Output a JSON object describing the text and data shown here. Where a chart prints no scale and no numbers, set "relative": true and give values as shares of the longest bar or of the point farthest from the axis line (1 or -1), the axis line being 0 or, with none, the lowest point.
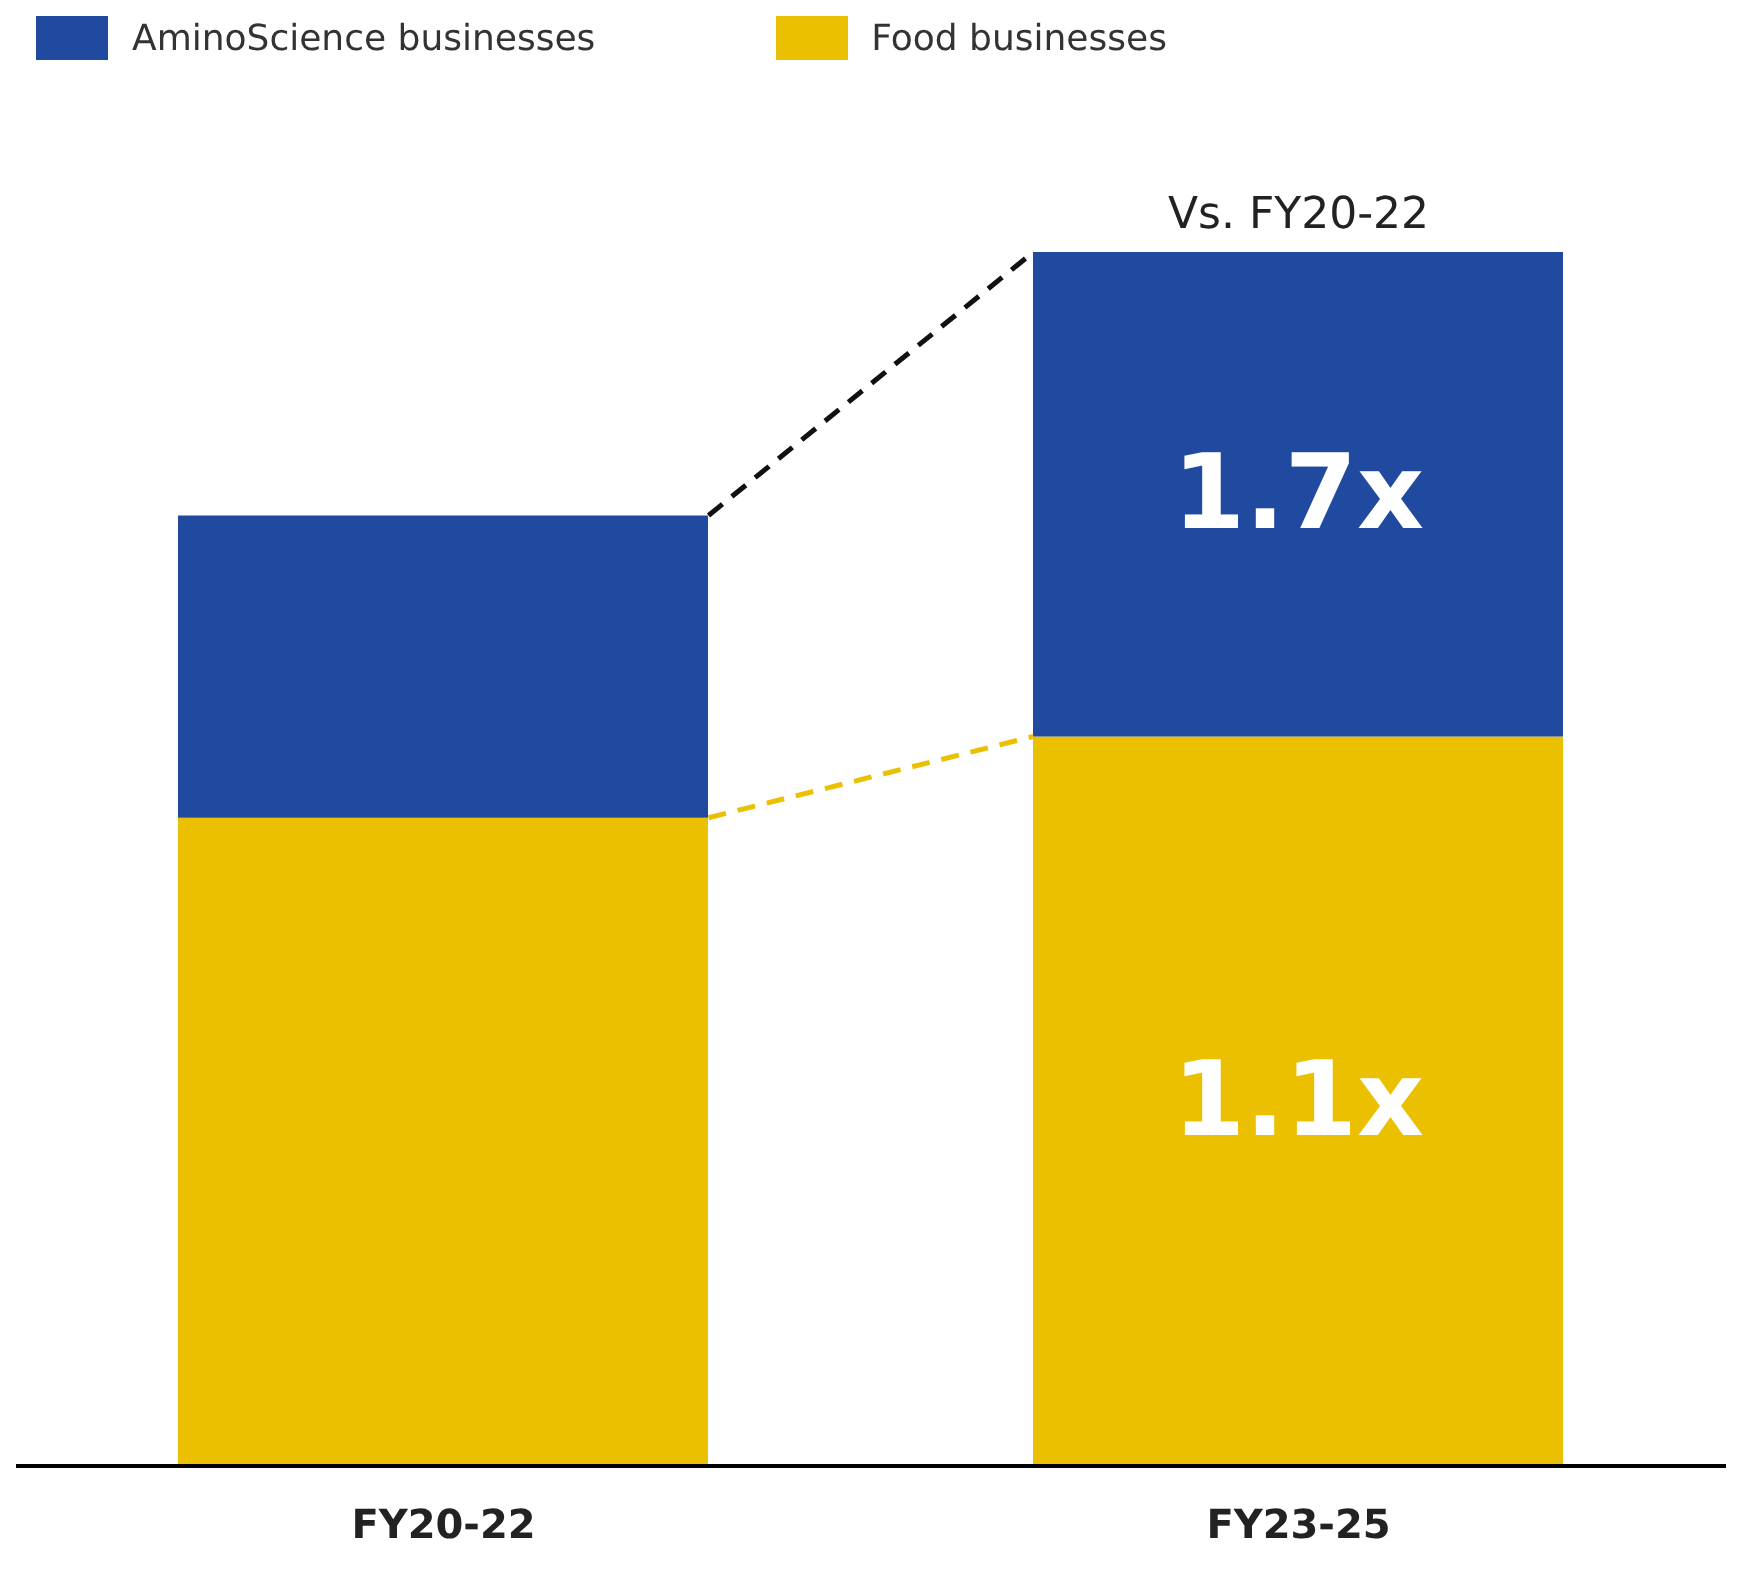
{
  "chart_data": {
    "type": "bar",
    "stacked": true,
    "relative": true,
    "categories": [
      "FY20-22",
      "FY23-25"
    ],
    "series": [
      {
        "name": "Food businesses",
        "color": "#ebc000",
        "values": [
          0.534,
          0.601
        ]
      },
      {
        "name": "AminoScience businesses",
        "color": "#1f4aa0",
        "values": [
          0.249,
          0.399
        ]
      }
    ],
    "legend": "top left",
    "annotations": [
      {
        "text": "Vs. FY20-22",
        "x": "FY23-25",
        "y": 1
      },
      "1.7x",
      "1.1x"
    ]
  }
}
